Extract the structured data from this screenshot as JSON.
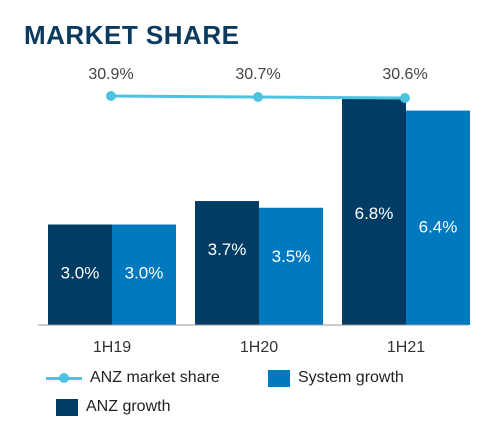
{
  "title": "MARKET SHARE",
  "colors": {
    "anz_growth": "#003c63",
    "system_growth": "#0079bf",
    "market_share_line": "#4ec3e0",
    "title": "#0b3a5f"
  },
  "legend": {
    "market_share": "ANZ market share",
    "system_growth": "System growth",
    "anz_growth": "ANZ growth"
  },
  "chart_data": {
    "type": "bar",
    "title": "MARKET SHARE",
    "categories": [
      "1H19",
      "1H20",
      "1H21"
    ],
    "series": [
      {
        "name": "ANZ growth",
        "values": [
          3.0,
          3.7,
          6.8
        ],
        "labels": [
          "3.0%",
          "3.7%",
          "6.8%"
        ]
      },
      {
        "name": "System growth",
        "values": [
          3.0,
          3.5,
          6.4
        ],
        "labels": [
          "3.0%",
          "3.5%",
          "6.4%"
        ]
      }
    ],
    "line_series": {
      "name": "ANZ market share",
      "values": [
        30.9,
        30.7,
        30.6
      ],
      "labels": [
        "30.9%",
        "30.7%",
        "30.6%"
      ]
    },
    "xlabel": "",
    "ylabel": "",
    "ylim": [
      0,
      7
    ],
    "grid": false,
    "legend_position": "bottom"
  }
}
